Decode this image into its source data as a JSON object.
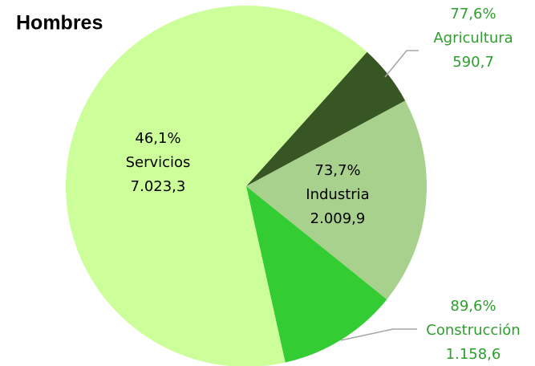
{
  "chart_data": {
    "type": "pie",
    "title": "Hombres",
    "categories": [
      "Agricultura",
      "Industria",
      "Construcción",
      "Servicios"
    ],
    "values": [
      590.7,
      2009.9,
      1158.6,
      7023.3
    ],
    "value_labels": [
      "590,7",
      "2.009,9",
      "1.158,6",
      "7.023,3"
    ],
    "percentages": [
      77.6,
      73.7,
      89.6,
      46.1
    ],
    "percentage_labels": [
      "77,6%",
      "73,7%",
      "89,6%",
      "46,1%"
    ],
    "colors": [
      "#375623",
      "#a9d18e",
      "#33cc33",
      "#ccff99"
    ]
  }
}
